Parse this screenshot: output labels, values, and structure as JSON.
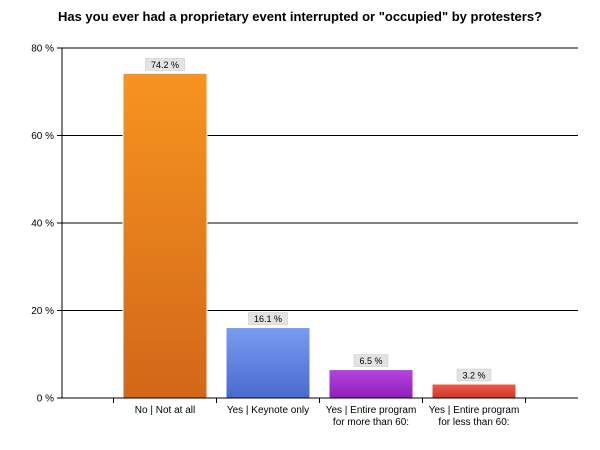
{
  "chart_data": {
    "type": "bar",
    "title": "Has you ever had a proprietary event interrupted or \"occupied\" by protesters?",
    "categories": [
      [
        "No | Not at all"
      ],
      [
        "Yes | Keynote only"
      ],
      [
        "Yes | Entire program",
        "for more than 60:"
      ],
      [
        "Yes | Entire program",
        "for less than 60:"
      ]
    ],
    "values": [
      74.2,
      16.1,
      6.5,
      3.2
    ],
    "data_labels": [
      "74.2 %",
      "16.1 %",
      "6.5 %",
      "3.2 %"
    ],
    "colors": [
      [
        "#f7941f",
        "#d2671a"
      ],
      [
        "#7a9cf0",
        "#4a6ad0"
      ],
      [
        "#b544e0",
        "#8f1fb8"
      ],
      [
        "#ec5a4a",
        "#cf3a2a"
      ]
    ],
    "ylim": [
      0,
      80
    ],
    "yticks": [
      0,
      20,
      40,
      60,
      80
    ],
    "ytick_labels": [
      "0 %",
      "20 %",
      "40 %",
      "60 %",
      "80 %"
    ],
    "grid": true,
    "xlabel": "",
    "ylabel": ""
  }
}
